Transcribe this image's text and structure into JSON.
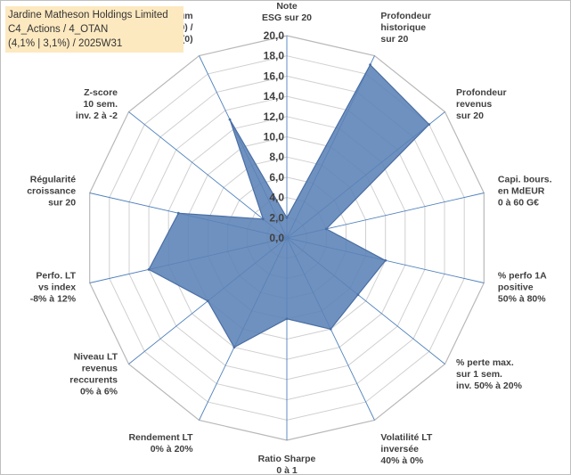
{
  "header": {
    "line1": "Jardine Matheson Holdings Limited",
    "line2": "C4_Actions / 4_OTAN",
    "line3": "(4,1% | 3,1%) / 2025W31"
  },
  "colors": {
    "fill": "#5b82b6",
    "stroke": "#4a6fa5",
    "grid": "#d0d0d0",
    "spoke": "#4f81bd",
    "title_bg": "#fde9c0"
  },
  "chart_data": {
    "type": "radar",
    "title": "",
    "rmin": 0,
    "rmax": 20,
    "tick_step": 2,
    "ticks": [
      "0,0",
      "2,0",
      "4,0",
      "6,0",
      "8,0",
      "10,0",
      "12,0",
      "14,0",
      "16,0",
      "18,0",
      "20,0"
    ],
    "axes": [
      [
        "Note",
        "ESG sur 20"
      ],
      [
        "Profondeur",
        "historique",
        "sur 20"
      ],
      [
        "Profondeur",
        "revenus",
        "sur 20"
      ],
      [
        "Capi. bours.",
        "en MdEUR",
        "0 à 60 G€"
      ],
      [
        "% perfo 1A",
        "positive",
        "50% à 80%"
      ],
      [
        "% perte max.",
        "sur 1 sem.",
        "inv. 50% à 20%"
      ],
      [
        "Volatilité LT",
        "inversée",
        "40% à 0%"
      ],
      [
        "Ratio Sharpe",
        "0 à 1"
      ],
      [
        "Rendement LT",
        "0% à 20%"
      ],
      [
        "Niveau LT",
        "revenus",
        "reccurents",
        "0% à 6%"
      ],
      [
        "Perfo. LT",
        "vs index",
        "-8% à 12%"
      ],
      [
        "Régularité",
        "croissance",
        "sur 20"
      ],
      [
        "Z-score",
        "10 sem.",
        "inv. 2 à -2"
      ],
      [
        "Momentum",
        "Achat (20) /",
        "Vente (0)"
      ]
    ],
    "values": [
      2.0,
      19.0,
      18.0,
      4.0,
      10.0,
      9.0,
      10.0,
      8.0,
      12.0,
      10.0,
      14.0,
      11.0,
      3.0,
      13.0
    ],
    "grid": true,
    "legend": "none"
  }
}
